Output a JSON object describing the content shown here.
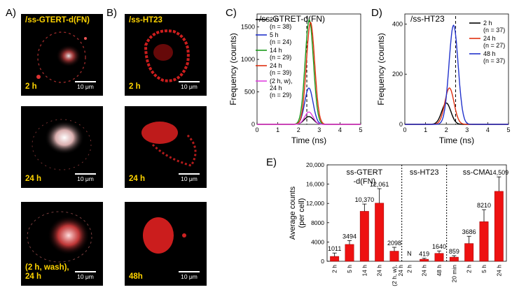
{
  "panels": {
    "A": {
      "letter": "A)",
      "title": "/ss-GTERT-d(FN)",
      "times": [
        "2 h",
        "24 h",
        "(2 h, wash),\n24 h"
      ]
    },
    "B": {
      "letter": "B)",
      "title": "/ss-HT23",
      "times": [
        "2 h",
        "24 h",
        "48h"
      ]
    },
    "C": {
      "letter": "C)"
    },
    "D": {
      "letter": "D)"
    },
    "E": {
      "letter": "E)"
    },
    "scale_label": "10 μm"
  },
  "chart_data": [
    {
      "id": "C",
      "type": "line",
      "title": "/ss-GTRET-d(FN)",
      "xlabel": "Time (ns)",
      "ylabel": "Frequency (counts)",
      "xlim": [
        0,
        5
      ],
      "ylim": [
        0,
        1700
      ],
      "xticks": [
        0,
        1,
        2,
        3,
        4,
        5
      ],
      "yticks": [
        0,
        500,
        1000,
        1500
      ],
      "series": [
        {
          "name": "2 h",
          "note": "(n = 38)",
          "color": "#000000",
          "peak_x": 2.5,
          "peak_y": 120,
          "sigma": 0.22
        },
        {
          "name": "5 h",
          "note": "(n = 24)",
          "color": "#2233cc",
          "peak_x": 2.5,
          "peak_y": 560,
          "sigma": 0.2
        },
        {
          "name": "14 h",
          "note": "(n = 29)",
          "color": "#1a9a1a",
          "peak_x": 2.52,
          "peak_y": 1610,
          "sigma": 0.2
        },
        {
          "name": "24 h",
          "note": "(n = 39)",
          "color": "#e03010",
          "peak_x": 2.58,
          "peak_y": 1570,
          "sigma": 0.2
        },
        {
          "name": "(2 h, w),\n24 h",
          "note": "(n = 29)",
          "color": "#e040e0",
          "peak_x": 2.5,
          "peak_y": 190,
          "sigma": 0.2
        }
      ],
      "dashed_x": 2.4
    },
    {
      "id": "D",
      "type": "line",
      "title": "/ss-HT23",
      "xlabel": "Time (ns)",
      "ylabel": "Frequency (counts)",
      "xlim": [
        0,
        5
      ],
      "ylim": [
        0,
        440
      ],
      "xticks": [
        0,
        1,
        2,
        3,
        4,
        5
      ],
      "yticks": [
        0,
        200,
        400
      ],
      "series": [
        {
          "name": "2 h",
          "note": "(n = 37)",
          "color": "#000000",
          "peak_x": 2.0,
          "peak_y": 85,
          "sigma": 0.22
        },
        {
          "name": "24 h",
          "note": "(n = 27)",
          "color": "#e03010",
          "peak_x": 2.15,
          "peak_y": 145,
          "sigma": 0.22
        },
        {
          "name": "48 h",
          "note": "(n = 37)",
          "color": "#2233cc",
          "peak_x": 2.35,
          "peak_y": 395,
          "sigma": 0.22
        }
      ],
      "dashed_x": 2.45
    },
    {
      "id": "E",
      "type": "bar",
      "ylabel": "Average counts\n(per cell)",
      "ylim": [
        0,
        20000
      ],
      "yticks": [
        0,
        4000,
        8000,
        12000,
        16000,
        20000
      ],
      "ytick_labels": [
        "0",
        "4000",
        "8000",
        "12,000",
        "16,000",
        "20,000"
      ],
      "groups": [
        {
          "label": "ss-GTERT\n-d(FN)",
          "categories": [
            "2 h",
            "5 h",
            "14 h",
            "24 h",
            "(2 h, w),\n24 h"
          ],
          "values": [
            1011,
            3494,
            10370,
            12061,
            2098
          ],
          "errors": [
            700,
            800,
            1500,
            3000,
            800
          ],
          "labels": [
            "1011",
            "3494",
            "10,370",
            "12,061",
            "2098"
          ]
        },
        {
          "label": "ss-HT23",
          "categories": [
            "2 h",
            "24 h",
            "48 h"
          ],
          "values": [
            0,
            419,
            1640
          ],
          "errors": [
            0,
            200,
            500
          ],
          "labels": [
            "N",
            "419",
            "1640"
          ]
        },
        {
          "label": "ss-CMA",
          "categories": [
            "20 min",
            "2 h",
            "5 h",
            "24 h"
          ],
          "values": [
            859,
            3686,
            8210,
            14509
          ],
          "errors": [
            300,
            1500,
            2500,
            3000
          ],
          "labels": [
            "859",
            "3686",
            "8210",
            "14,509"
          ]
        }
      ],
      "color": "#ee1111"
    }
  ]
}
